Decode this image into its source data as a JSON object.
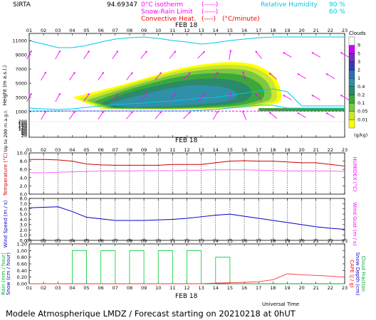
{
  "header": {
    "station": "SIRTA",
    "coords": "94.69347",
    "legend_isotherm": "0°C isotherm",
    "legend_isotherm_style": "(-----)",
    "legend_snow_rain": "Snow-Rain Limit",
    "legend_snow_rain_style": "(-----)",
    "legend_convective": "Convective Heat.",
    "legend_convective_style": "(----)",
    "legend_convective_unit": "(°C/minute)",
    "legend_rh": "Relative Humidity",
    "rh_levels": [
      "90 %",
      "60 %"
    ],
    "colors": {
      "magenta": "#ff00ff",
      "red": "#ff0000",
      "cyan": "#00c8e6",
      "blue": "#0000cc"
    }
  },
  "date_label": "FEB 18",
  "footer": {
    "title": "Modele Atmospherique LMDZ / Forecast starting on 20210218 at 0hUT",
    "xlabel": "Universal Time"
  },
  "hours": [
    "01",
    "02",
    "03",
    "04",
    "05",
    "06",
    "07",
    "08",
    "09",
    "10",
    "11",
    "12",
    "13",
    "14",
    "15",
    "16",
    "17",
    "18",
    "19",
    "20",
    "21",
    "22",
    "23"
  ],
  "chart_data": [
    {
      "type": "heatmap",
      "ylabel": "Height (m a.s.l.)",
      "ylabel_low": "Up to 200 m a.g.l.",
      "y_ticks_upper": [
        "11000",
        "9000",
        "7000",
        "5000",
        "3000",
        "1000"
      ],
      "y_ticks_lower": [
        "200",
        "180",
        "160",
        "140",
        "120",
        "100",
        "80",
        "60",
        "40",
        "20"
      ],
      "colorbar_title": "Clouds",
      "colorbar_unit": "(g/kg)",
      "colorbar_levels": [
        "9",
        "5",
        "3",
        "2",
        "1",
        "0.4",
        "0.2",
        "0.1",
        "0.05",
        "0.01"
      ],
      "colorbar_colors": [
        "#ffffff",
        "#cc00ff",
        "#7030c0",
        "#3a3aa8",
        "#2a70b8",
        "#3090a8",
        "#2a8a6a",
        "#3ca83c",
        "#7cc840",
        "#c8e632",
        "#ffff00"
      ],
      "cloud_layers": [
        {
          "level": "0.01",
          "color": "#ffff00",
          "ys": [
            [
              4,
              3000,
              1500
            ],
            [
              8,
              5000,
              1300
            ],
            [
              12,
              7500,
              1300
            ],
            [
              16,
              8200,
              1500
            ],
            [
              18,
              6600,
              2000
            ],
            [
              18.6,
              4000,
              2400
            ]
          ]
        },
        {
          "level": "0.05",
          "color": "#c8e632",
          "ys": [
            [
              4.5,
              2800,
              1500
            ],
            [
              8,
              4800,
              1350
            ],
            [
              12,
              7200,
              1350
            ],
            [
              16,
              7800,
              1600
            ],
            [
              17.8,
              6200,
              2200
            ],
            [
              18.3,
              4000,
              2600
            ]
          ]
        },
        {
          "level": "0.1",
          "color": "#7cc840",
          "ys": [
            [
              5,
              2600,
              1500
            ],
            [
              8,
              4500,
              1400
            ],
            [
              12,
              6800,
              1400
            ],
            [
              16,
              7200,
              1700
            ],
            [
              17.5,
              5600,
              2400
            ],
            [
              17.9,
              4000,
              2800
            ]
          ]
        },
        {
          "level": "0.2",
          "color": "#3ca83c",
          "ys": [
            [
              5.5,
              2400,
              1550
            ],
            [
              8,
              4200,
              1450
            ],
            [
              12,
              6300,
              1450
            ],
            [
              15.5,
              6500,
              1800
            ],
            [
              17,
              5200,
              2500
            ],
            [
              17.4,
              4000,
              3000
            ]
          ]
        },
        {
          "level": "0.4",
          "color": "#2a8a6a",
          "ys": [
            [
              6,
              2200,
              1600
            ],
            [
              8,
              3800,
              1500
            ],
            [
              12,
              5600,
              1600
            ],
            [
              15,
              5700,
              2000
            ],
            [
              16.5,
              4500,
              2700
            ]
          ]
        },
        {
          "level": "1",
          "color": "#3090a8",
          "ys": [
            [
              6.5,
              2100,
              1650
            ],
            [
              9,
              3500,
              1600
            ],
            [
              12,
              4800,
              1900
            ],
            [
              14.5,
              4600,
              2300
            ],
            [
              15.5,
              3800,
              2900
            ]
          ]
        }
      ],
      "low_cloud_band": {
        "from_hour": 17,
        "to_hour": 23,
        "top": 1500,
        "bottom": 1050
      },
      "isotherm_zero_m": [
        1050,
        1050,
        1050,
        1080,
        1080,
        1080,
        1080,
        1080,
        1080,
        1080,
        1080,
        1080,
        1080,
        1080,
        1080,
        1080,
        1080,
        1080,
        1080,
        1050,
        1050,
        1050,
        1050
      ],
      "rh_90_m": [
        1100,
        1100,
        1100,
        1100,
        1100,
        1100,
        1100,
        1100,
        1100,
        1100,
        1100,
        1100,
        1200,
        1300,
        1500,
        1700,
        1900,
        1900,
        1500,
        1500,
        1500,
        1500,
        1500
      ],
      "rh_60_m": [
        1500,
        1400,
        1300,
        1400,
        1600,
        1800,
        2000,
        2100,
        2200,
        2400,
        2500,
        2700,
        2900,
        3000,
        3300,
        3600,
        3900,
        4200,
        3800,
        1800,
        1800,
        1800,
        1800
      ],
      "rh_upper_m": [
        11000,
        10500,
        10000,
        10000,
        10300,
        10800,
        11200,
        11400,
        11500,
        11300,
        11000,
        10800,
        10500,
        10700,
        11000,
        11200,
        11400,
        11500,
        11500,
        11500,
        11500,
        11500,
        11500
      ],
      "wind_dir_deg": [
        60,
        60,
        60,
        55,
        55,
        55,
        55,
        50,
        50,
        50,
        50,
        45,
        45,
        60,
        80,
        110,
        130,
        140,
        150,
        150,
        150,
        150,
        150
      ]
    },
    {
      "type": "line",
      "ylabel": "Temperature (°C)",
      "ylabel_right": "HUMIDEX (°C)",
      "y_ticks": [
        "10.0",
        "8.0",
        "6.0",
        "4.0",
        "2.0",
        "0.0"
      ],
      "ylim": [
        0,
        10
      ],
      "series": [
        {
          "name": "Temperature",
          "color": "#cc0000",
          "values": [
            8.4,
            8.4,
            8.3,
            8.0,
            7.3,
            7.1,
            7.0,
            7.0,
            7.0,
            7.0,
            7.2,
            7.2,
            7.2,
            7.6,
            8.0,
            8.1,
            8.0,
            8.0,
            7.8,
            7.6,
            7.6,
            7.2,
            6.8
          ]
        },
        {
          "name": "HUMIDEX",
          "color": "#ff66ff",
          "values": [
            5.2,
            5.2,
            5.3,
            5.4,
            5.5,
            5.6,
            5.6,
            5.6,
            5.7,
            5.7,
            5.7,
            5.8,
            5.8,
            5.9,
            5.9,
            5.9,
            5.8,
            5.7,
            5.6,
            5.6,
            5.6,
            5.6,
            5.5
          ]
        }
      ]
    },
    {
      "type": "line",
      "ylabel": "Wind Speed (m / s)",
      "ylabel_right": "Wind Gust (m / s)",
      "y_ticks": [
        "8.0",
        "7.0",
        "6.0",
        "5.0",
        "4.0",
        "3.0",
        "2.0",
        "1.0",
        "0.0"
      ],
      "ylim": [
        0,
        8
      ],
      "series": [
        {
          "name": "Wind Speed",
          "color": "#0000cc",
          "values": [
            6.2,
            6.3,
            6.4,
            5.5,
            4.4,
            4.1,
            3.8,
            3.8,
            3.8,
            3.9,
            4.0,
            4.2,
            4.5,
            4.8,
            5.0,
            4.6,
            4.2,
            3.8,
            3.4,
            3.0,
            2.6,
            2.3,
            2.1
          ]
        }
      ]
    },
    {
      "type": "line",
      "ylabel": "Rain (mm / hour)",
      "ylabel_2": "Snow (cm / hour)",
      "ylabel_right": "CAPE (J / g)",
      "ylabel_right_2": "Snow Depth (cm)",
      "ylabel_right_3": "Cloud Fraction",
      "y_ticks": [
        "1.20",
        "1.00",
        "0.80",
        "0.60",
        "0.40",
        "0.20",
        "0.00"
      ],
      "ylim": [
        0,
        1.2
      ],
      "series": [
        {
          "name": "Cloud Fraction",
          "color": "#00cc33",
          "values": [
            0,
            0,
            0,
            1.0,
            0,
            1.0,
            0,
            1.0,
            0,
            1.0,
            0,
            1.0,
            0,
            0.8,
            0,
            0,
            0,
            0,
            0,
            0,
            0,
            0,
            0
          ]
        },
        {
          "name": "CAPE",
          "color": "#ff3333",
          "values": [
            0,
            0,
            0,
            0,
            0,
            0,
            0,
            0,
            0,
            0,
            0,
            0,
            0,
            0.02,
            0.03,
            0.04,
            0.06,
            0.12,
            0.3,
            0.27,
            0.25,
            0.23,
            0.2
          ]
        }
      ]
    }
  ]
}
